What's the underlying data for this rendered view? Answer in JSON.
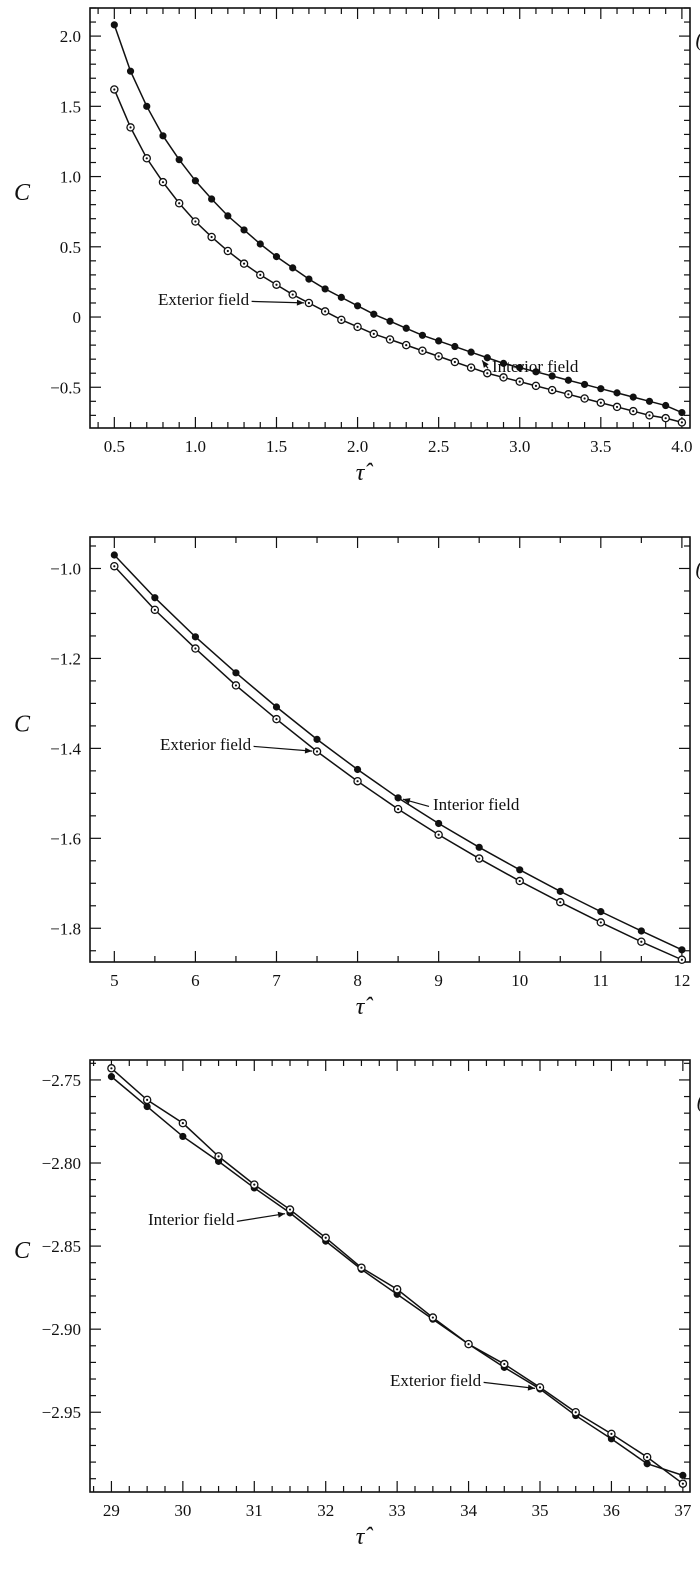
{
  "chart_data": [
    {
      "type": "line",
      "panel_label": "(a)",
      "xlabel": "τ̂",
      "ylabel": "C",
      "xlim": [
        0.35,
        4.05
      ],
      "ylim": [
        -0.79,
        2.2
      ],
      "xticks": [
        0.5,
        1.0,
        1.5,
        2.0,
        2.5,
        3.0,
        3.5,
        4.0
      ],
      "xtick_labels": [
        "0.5",
        "1.0",
        "1.5",
        "2.0",
        "2.5",
        "3.0",
        "3.5",
        "4.0"
      ],
      "yticks": [
        -0.5,
        0,
        0.5,
        1.0,
        1.5,
        2.0
      ],
      "ytick_labels": [
        "−0.5",
        "0",
        "0.5",
        "1.0",
        "1.5",
        "2.0"
      ],
      "x_minor_step": 0.1,
      "y_minor_step": 0.1,
      "series": [
        {
          "name": "Interior field",
          "marker": "filled",
          "x": [
            0.5,
            0.6,
            0.7,
            0.8,
            0.9,
            1.0,
            1.1,
            1.2,
            1.3,
            1.4,
            1.5,
            1.6,
            1.7,
            1.8,
            1.9,
            2.0,
            2.1,
            2.2,
            2.3,
            2.4,
            2.5,
            2.6,
            2.7,
            2.8,
            2.9,
            3.0,
            3.1,
            3.2,
            3.3,
            3.4,
            3.5,
            3.6,
            3.7,
            3.8,
            3.9,
            4.0
          ],
          "y": [
            2.08,
            1.75,
            1.5,
            1.29,
            1.12,
            0.97,
            0.84,
            0.72,
            0.62,
            0.52,
            0.43,
            0.35,
            0.27,
            0.2,
            0.14,
            0.08,
            0.02,
            -0.03,
            -0.08,
            -0.13,
            -0.17,
            -0.21,
            -0.25,
            -0.29,
            -0.33,
            -0.36,
            -0.39,
            -0.42,
            -0.45,
            -0.48,
            -0.51,
            -0.54,
            -0.57,
            -0.6,
            -0.63,
            -0.68
          ]
        },
        {
          "name": "Exterior field",
          "marker": "open",
          "x": [
            0.5,
            0.6,
            0.7,
            0.8,
            0.9,
            1.0,
            1.1,
            1.2,
            1.3,
            1.4,
            1.5,
            1.6,
            1.7,
            1.8,
            1.9,
            2.0,
            2.1,
            2.2,
            2.3,
            2.4,
            2.5,
            2.6,
            2.7,
            2.8,
            2.9,
            3.0,
            3.1,
            3.2,
            3.3,
            3.4,
            3.5,
            3.6,
            3.7,
            3.8,
            3.9,
            4.0
          ],
          "y": [
            1.62,
            1.35,
            1.13,
            0.96,
            0.81,
            0.68,
            0.57,
            0.47,
            0.38,
            0.3,
            0.23,
            0.16,
            0.1,
            0.04,
            -0.02,
            -0.07,
            -0.12,
            -0.16,
            -0.2,
            -0.24,
            -0.28,
            -0.32,
            -0.36,
            -0.4,
            -0.43,
            -0.46,
            -0.49,
            -0.52,
            -0.55,
            -0.58,
            -0.61,
            -0.64,
            -0.67,
            -0.7,
            -0.72,
            -0.75
          ]
        }
      ],
      "annotations": [
        {
          "text": "Exterior field",
          "series": "Exterior field",
          "x": 1.7,
          "y": 0.1
        },
        {
          "text": "Interior field",
          "series": "Interior field",
          "x": 2.75,
          "y": -0.28
        }
      ]
    },
    {
      "type": "line",
      "panel_label": "(b)",
      "xlabel": "τ̂",
      "ylabel": "C",
      "xlim": [
        4.7,
        12.1
      ],
      "ylim": [
        -1.875,
        -0.93
      ],
      "xticks": [
        5,
        6,
        7,
        8,
        9,
        10,
        11,
        12
      ],
      "xtick_labels": [
        "5",
        "6",
        "7",
        "8",
        "9",
        "10",
        "11",
        "12"
      ],
      "yticks": [
        -1.8,
        -1.6,
        -1.4,
        -1.2,
        -1.0
      ],
      "ytick_labels": [
        "−1.8",
        "−1.6",
        "−1.4",
        "−1.2",
        "−1.0"
      ],
      "x_minor_step": 0.5,
      "y_minor_step": 0.05,
      "series": [
        {
          "name": "Interior field",
          "marker": "filled",
          "x": [
            5.0,
            5.5,
            6.0,
            6.5,
            7.0,
            7.5,
            8.0,
            8.5,
            9.0,
            9.5,
            10.0,
            10.5,
            11.0,
            11.5,
            12.0
          ],
          "y": [
            -0.97,
            -1.065,
            -1.152,
            -1.232,
            -1.308,
            -1.38,
            -1.447,
            -1.51,
            -1.567,
            -1.62,
            -1.67,
            -1.718,
            -1.763,
            -1.806,
            -1.848
          ]
        },
        {
          "name": "Exterior field",
          "marker": "open",
          "x": [
            5.0,
            5.5,
            6.0,
            6.5,
            7.0,
            7.5,
            8.0,
            8.5,
            9.0,
            9.5,
            10.0,
            10.5,
            11.0,
            11.5,
            12.0
          ],
          "y": [
            -0.995,
            -1.092,
            -1.178,
            -1.26,
            -1.335,
            -1.407,
            -1.473,
            -1.535,
            -1.592,
            -1.645,
            -1.695,
            -1.742,
            -1.787,
            -1.83,
            -1.87
          ]
        }
      ],
      "annotations": [
        {
          "text": "Exterior field",
          "series": "Exterior field",
          "x": 7.5,
          "y": -1.407
        },
        {
          "text": "Interior field",
          "series": "Interior field",
          "x": 8.5,
          "y": -1.51
        }
      ]
    },
    {
      "type": "line",
      "panel_label": "(c)",
      "xlabel": "τ̂",
      "ylabel": "C",
      "xlim": [
        28.7,
        37.1
      ],
      "ylim": [
        -2.998,
        -2.738
      ],
      "xticks": [
        29,
        30,
        31,
        32,
        33,
        34,
        35,
        36,
        37
      ],
      "xtick_labels": [
        "29",
        "30",
        "31",
        "32",
        "33",
        "34",
        "35",
        "36",
        "37"
      ],
      "yticks": [
        -2.95,
        -2.9,
        -2.85,
        -2.8,
        -2.75
      ],
      "ytick_labels": [
        "−2.95",
        "−2.90",
        "−2.85",
        "−2.80",
        "−2.75"
      ],
      "x_minor_step": 0.25,
      "y_minor_step": 0.01,
      "series": [
        {
          "name": "Interior field",
          "marker": "filled",
          "x": [
            29.0,
            29.5,
            30.0,
            30.5,
            31.0,
            31.5,
            32.0,
            32.5,
            33.0,
            33.5,
            34.0,
            34.5,
            35.0,
            35.5,
            36.0,
            36.5,
            37.0
          ],
          "y": [
            -2.748,
            -2.766,
            -2.784,
            -2.799,
            -2.815,
            -2.83,
            -2.847,
            -2.864,
            -2.879,
            -2.894,
            -2.909,
            -2.923,
            -2.936,
            -2.952,
            -2.966,
            -2.981,
            -2.988
          ]
        },
        {
          "name": "Exterior field",
          "marker": "open",
          "x": [
            29.0,
            29.5,
            30.0,
            30.5,
            31.0,
            31.5,
            32.0,
            32.5,
            33.0,
            33.5,
            34.0,
            34.5,
            35.0,
            35.5,
            36.0,
            36.5,
            37.0
          ],
          "y": [
            -2.743,
            -2.762,
            -2.776,
            -2.796,
            -2.813,
            -2.828,
            -2.845,
            -2.863,
            -2.876,
            -2.893,
            -2.909,
            -2.921,
            -2.935,
            -2.95,
            -2.963,
            -2.977,
            -2.993
          ]
        }
      ],
      "annotations": [
        {
          "text": "Interior field",
          "series": "Interior field",
          "x": 31.5,
          "y": -2.83
        },
        {
          "text": "Exterior field",
          "series": "Exterior field",
          "x": 35.0,
          "y": -2.936
        }
      ]
    }
  ]
}
